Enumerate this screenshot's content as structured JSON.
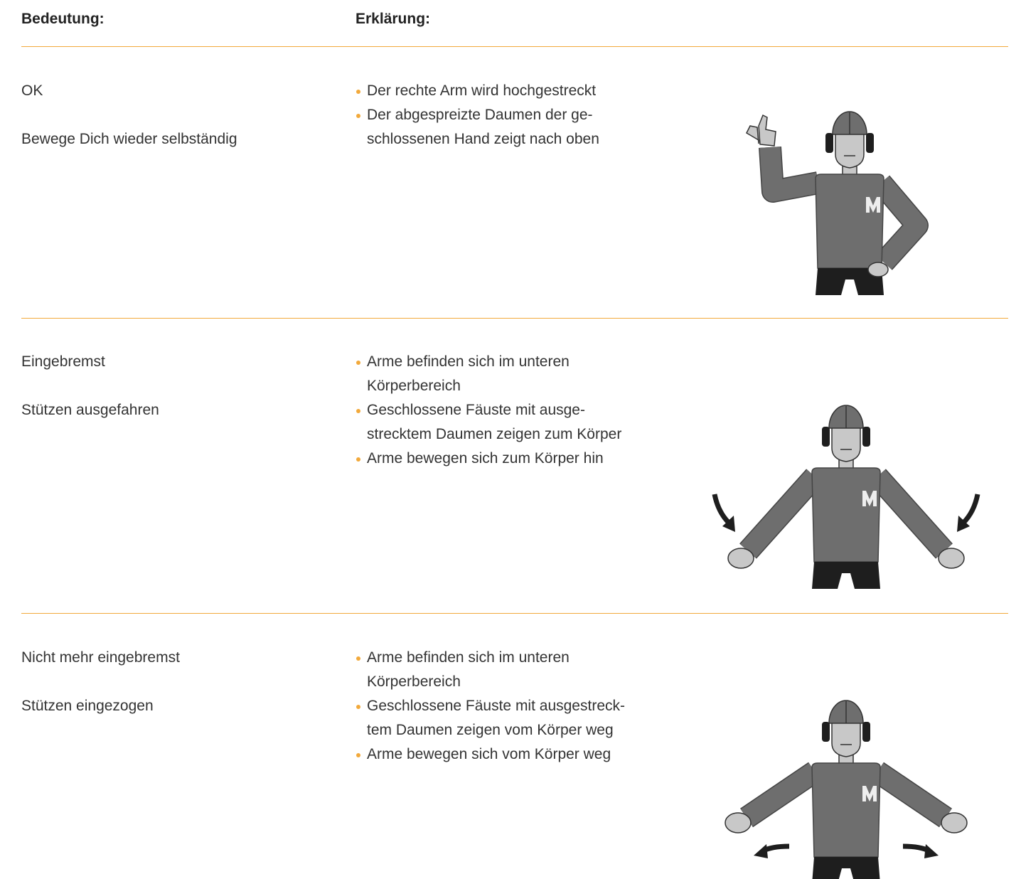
{
  "header": {
    "meaning": "Bedeutung:",
    "explanation": "Erklärung:"
  },
  "rows": [
    {
      "meanings": [
        "OK",
        "Bewege Dich wieder selbständig"
      ],
      "bullets": [
        [
          "Der rechte Arm wird hochgestreckt"
        ],
        [
          "Der abgespreizte Daumen der ge-",
          "schlossenen Hand zeigt nach oben"
        ]
      ]
    },
    {
      "meanings": [
        "Eingebremst",
        "Stützen ausgefahren"
      ],
      "bullets": [
        [
          "Arme befinden sich im unteren",
          "Körperbereich"
        ],
        [
          "Geschlossene Fäuste mit ausge-",
          "strecktem Daumen zeigen zum Körper"
        ],
        [
          "Arme bewegen sich zum Körper hin"
        ]
      ]
    },
    {
      "meanings": [
        "Nicht mehr eingebremst",
        "Stützen eingezogen"
      ],
      "bullets": [
        [
          "Arme befinden sich im unteren",
          "Körperbereich"
        ],
        [
          "Geschlossene Fäuste mit ausgestreck-",
          "tem Daumen zeigen vom Körper weg"
        ],
        [
          "Arme bewegen sich vom Körper weg"
        ]
      ]
    }
  ]
}
